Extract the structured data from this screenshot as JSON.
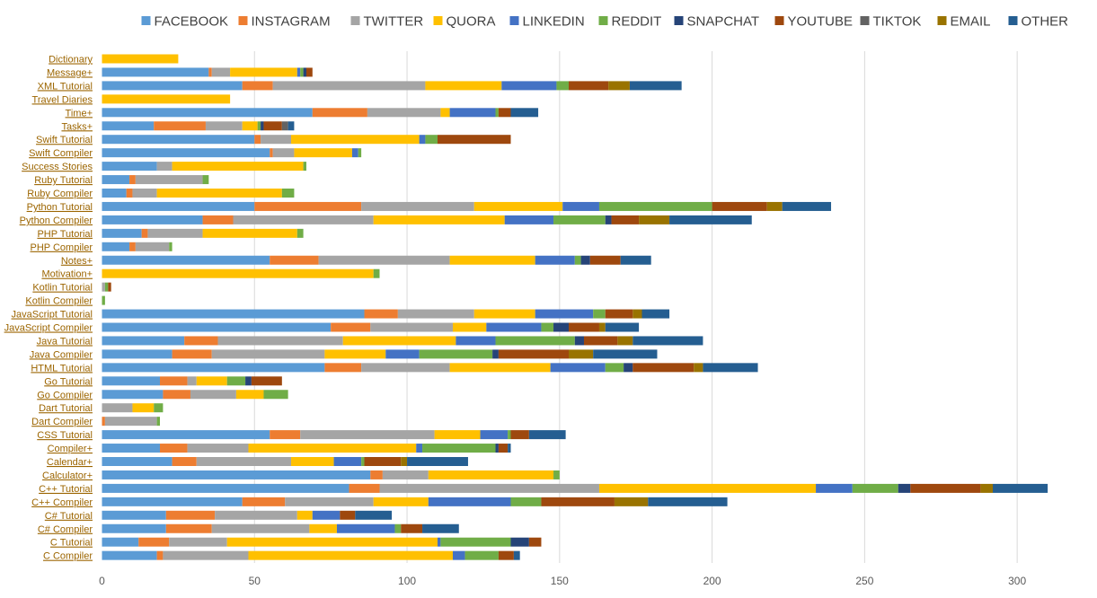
{
  "chart_data": {
    "type": "bar",
    "orientation": "horizontal",
    "stacked": true,
    "title": "",
    "xlabel": "",
    "ylabel": "",
    "xlim": [
      0,
      320
    ],
    "xticks": [
      0,
      50,
      100,
      150,
      200,
      250,
      300
    ],
    "grid": true,
    "legend_position": "top",
    "categories": [
      "Dictionary",
      "Message+",
      "XML Tutorial",
      "Travel Diaries",
      "Time+",
      "Tasks+",
      "Swift Tutorial",
      "Swift Compiler",
      "Success Stories",
      "Ruby Tutorial",
      "Ruby Compiler",
      "Python Tutorial",
      "Python Compiler",
      "PHP Tutorial",
      "PHP Compiler",
      "Notes+",
      "Motivation+",
      "Kotlin Tutorial",
      "Kotlin Compiler",
      "JavaScript Tutorial",
      "JavaScript Compiler",
      "Java Tutorial",
      "Java Compiler",
      "HTML Tutorial",
      "Go Tutorial",
      "Go Compiler",
      "Dart Tutorial",
      "Dart Compiler",
      "CSS Tutorial",
      "Compiler+",
      "Calendar+",
      "Calculator+",
      "C++ Tutorial",
      "C++ Compiler",
      "C# Tutorial",
      "C# Compiler",
      "C Tutorial",
      "C Compiler"
    ],
    "series": [
      {
        "name": "FACEBOOK",
        "color": "#5b9bd5",
        "values": [
          0,
          35,
          46,
          0,
          69,
          17,
          50,
          55,
          18,
          9,
          8,
          50,
          33,
          13,
          9,
          55,
          0,
          0,
          0,
          86,
          75,
          27,
          23,
          73,
          19,
          20,
          0,
          0,
          55,
          19,
          23,
          88,
          81,
          46,
          21,
          21,
          12,
          18
        ]
      },
      {
        "name": "INSTAGRAM",
        "color": "#ed7d31",
        "values": [
          0,
          1,
          10,
          0,
          18,
          17,
          2,
          1,
          0,
          2,
          2,
          35,
          10,
          2,
          2,
          16,
          0,
          0,
          0,
          11,
          13,
          11,
          13,
          12,
          9,
          9,
          0,
          1,
          10,
          9,
          8,
          4,
          10,
          14,
          16,
          15,
          10,
          2
        ]
      },
      {
        "name": "TWITTER",
        "color": "#a5a5a5",
        "values": [
          0,
          6,
          50,
          0,
          24,
          12,
          10,
          7,
          5,
          22,
          8,
          37,
          46,
          18,
          11,
          43,
          0,
          1,
          0,
          25,
          27,
          41,
          37,
          29,
          3,
          15,
          10,
          17,
          44,
          20,
          31,
          15,
          72,
          29,
          27,
          32,
          19,
          28
        ]
      },
      {
        "name": "QUORA",
        "color": "#ffc000",
        "values": [
          25,
          22,
          25,
          42,
          3,
          5,
          42,
          19,
          43,
          0,
          41,
          29,
          43,
          31,
          0,
          28,
          89,
          0,
          0,
          20,
          11,
          37,
          20,
          33,
          10,
          9,
          7,
          0,
          15,
          55,
          14,
          41,
          71,
          18,
          5,
          9,
          69,
          67
        ]
      },
      {
        "name": "LINKEDIN",
        "color": "#4472c4",
        "values": [
          0,
          1,
          18,
          0,
          15,
          0,
          2,
          2,
          0,
          0,
          0,
          12,
          16,
          0,
          0,
          13,
          0,
          0,
          0,
          19,
          18,
          13,
          11,
          18,
          0,
          0,
          0,
          0,
          9,
          2,
          9,
          0,
          12,
          27,
          9,
          19,
          1,
          4
        ]
      },
      {
        "name": "REDDIT",
        "color": "#70ad47",
        "values": [
          0,
          1,
          4,
          0,
          1,
          1,
          4,
          1,
          1,
          2,
          4,
          37,
          17,
          2,
          1,
          2,
          2,
          1,
          1,
          4,
          4,
          26,
          24,
          6,
          6,
          8,
          3,
          1,
          1,
          24,
          1,
          2,
          15,
          10,
          0,
          2,
          23,
          11
        ]
      },
      {
        "name": "SNAPCHAT",
        "color": "#264478",
        "values": [
          0,
          1,
          0,
          0,
          0,
          1,
          0,
          0,
          0,
          0,
          0,
          0,
          2,
          0,
          0,
          3,
          0,
          0,
          0,
          0,
          5,
          3,
          2,
          3,
          2,
          0,
          0,
          0,
          0,
          1,
          0,
          0,
          4,
          0,
          0,
          0,
          6,
          0
        ]
      },
      {
        "name": "YOUTUBE",
        "color": "#9e480e",
        "values": [
          0,
          2,
          13,
          0,
          4,
          6,
          24,
          0,
          0,
          0,
          0,
          18,
          9,
          0,
          0,
          10,
          0,
          1,
          0,
          9,
          10,
          11,
          23,
          20,
          10,
          0,
          0,
          0,
          6,
          3,
          12,
          0,
          23,
          24,
          5,
          7,
          4,
          5
        ]
      },
      {
        "name": "TIKTOK",
        "color": "#636363",
        "values": [
          0,
          0,
          0,
          0,
          0,
          2,
          0,
          0,
          0,
          0,
          0,
          0,
          0,
          0,
          0,
          0,
          0,
          0,
          0,
          0,
          0,
          0,
          0,
          0,
          0,
          0,
          0,
          0,
          0,
          0,
          0,
          0,
          0,
          0,
          0,
          0,
          0,
          0
        ]
      },
      {
        "name": "EMAIL",
        "color": "#997300",
        "values": [
          0,
          0,
          7,
          0,
          0,
          0,
          0,
          0,
          0,
          0,
          0,
          5,
          10,
          0,
          0,
          0,
          0,
          0,
          0,
          3,
          2,
          5,
          8,
          3,
          0,
          0,
          0,
          0,
          0,
          0,
          2,
          0,
          4,
          11,
          0,
          0,
          0,
          0
        ]
      },
      {
        "name": "OTHER",
        "color": "#255e91",
        "values": [
          0,
          0,
          17,
          0,
          9,
          2,
          0,
          0,
          0,
          0,
          0,
          16,
          27,
          0,
          0,
          10,
          0,
          0,
          0,
          9,
          11,
          23,
          21,
          18,
          0,
          0,
          0,
          0,
          12,
          1,
          20,
          0,
          18,
          26,
          12,
          12,
          0,
          2
        ]
      }
    ]
  }
}
